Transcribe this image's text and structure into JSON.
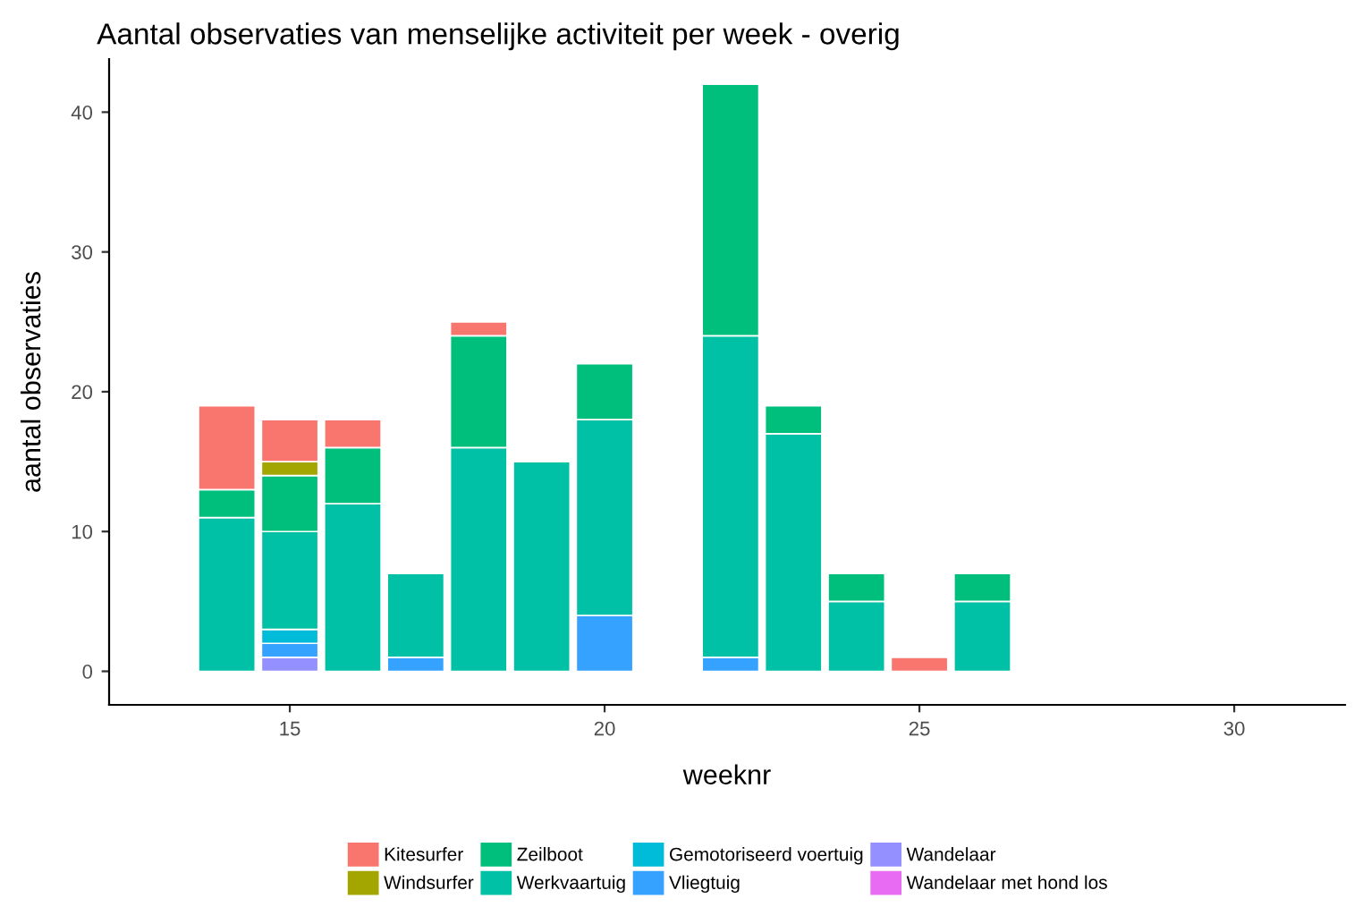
{
  "chart_data": {
    "type": "bar",
    "stacked": true,
    "title": "Aantal observaties van menselijke activiteit per week - overig",
    "xlabel": "weeknr",
    "ylabel": "aantal observaties",
    "x": [
      14,
      15,
      16,
      17,
      18,
      19,
      20,
      22,
      23,
      24,
      25,
      26
    ],
    "xlim": [
      12.13,
      31.76
    ],
    "xticks": [
      15,
      20,
      25,
      30
    ],
    "ylim": [
      -2.4,
      43.8
    ],
    "yticks": [
      0,
      10,
      20,
      30,
      40
    ],
    "grid": false,
    "legend": "bottom",
    "series": [
      {
        "name": "Wandelaar met hond los",
        "color": "#e76bf3",
        "values": [
          null,
          null,
          null,
          null,
          null,
          null,
          null,
          null,
          null,
          null,
          null,
          null
        ]
      },
      {
        "name": "Wandelaar",
        "color": "#9590ff",
        "values": [
          null,
          1,
          null,
          null,
          null,
          null,
          null,
          null,
          null,
          null,
          null,
          null
        ]
      },
      {
        "name": "Vliegtuig",
        "color": "#35a2ff",
        "values": [
          null,
          1,
          null,
          1,
          null,
          null,
          4,
          1,
          null,
          null,
          null,
          null
        ]
      },
      {
        "name": "Gemotoriseerd voertuig",
        "color": "#00bcd8",
        "values": [
          null,
          1,
          null,
          null,
          null,
          null,
          null,
          null,
          null,
          null,
          null,
          null
        ]
      },
      {
        "name": "Werkvaartuig",
        "color": "#00c0a5",
        "values": [
          11,
          7,
          12,
          6,
          16,
          15,
          14,
          23,
          17,
          5,
          null,
          5
        ]
      },
      {
        "name": "Zeilboot",
        "color": "#00bf7d",
        "values": [
          2,
          4,
          4,
          null,
          8,
          null,
          4,
          18,
          2,
          2,
          null,
          2
        ]
      },
      {
        "name": "Windsurfer",
        "color": "#a3a500",
        "values": [
          null,
          1,
          null,
          null,
          null,
          null,
          null,
          null,
          null,
          null,
          null,
          null
        ]
      },
      {
        "name": "Kitesurfer",
        "color": "#f8766d",
        "values": [
          6,
          3,
          2,
          null,
          1,
          null,
          null,
          null,
          null,
          null,
          1,
          null
        ]
      }
    ]
  }
}
